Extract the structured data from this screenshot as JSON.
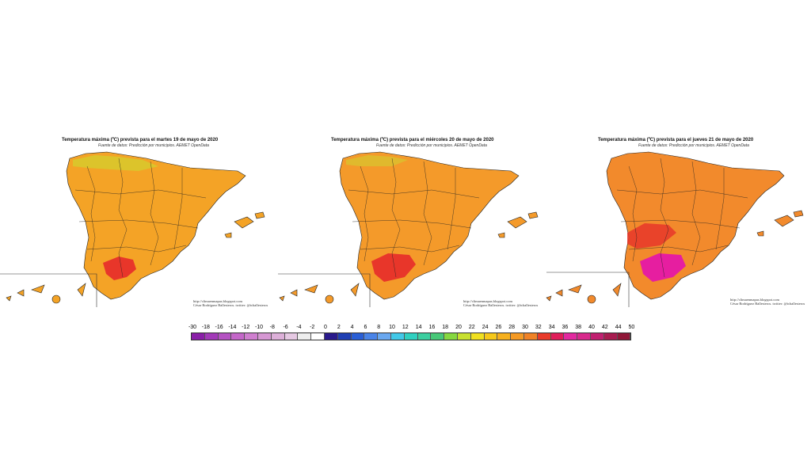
{
  "maps": [
    {
      "title": "Temperatura máxima (ºC) prevista para el martes 19 de mayo de 2020",
      "subtitle": "Fuente de datos: Predicción por municipios. AEMET OpenData",
      "credit_line1": "http://climaenmapas.blogspot.com",
      "credit_line2": "César Rodríguez Ballesteros. twitter: @tchallesteros",
      "dominant_color": "#f4a326",
      "hot_color": "#e8262f"
    },
    {
      "title": "Temperatura máxima (ºC) prevista para el miércoles 20 de mayo de 2020",
      "subtitle": "Fuente de datos: Predicción por municipios. AEMET OpenData",
      "credit_line1": "http://climaenmapas.blogspot.com",
      "credit_line2": "César Rodríguez Ballesteros. twitter: @tchallesteros",
      "dominant_color": "#f49a2a",
      "hot_color": "#e81f4a"
    },
    {
      "title": "Temperatura máxima (ºC) prevista para el jueves 21 de mayo de 2020",
      "subtitle": "Fuente de datos: Predicción por municipios. AEMET OpenData",
      "credit_line1": "http://climaenmapas.blogspot.com",
      "credit_line2": "César Rodríguez Ballesteros. twitter: @tchallesteros",
      "dominant_color": "#f28a2c",
      "hot_color": "#e61ea0"
    }
  ],
  "legend": {
    "labels": [
      "-30",
      "-18",
      "-16",
      "-14",
      "-12",
      "-10",
      "-8",
      "-6",
      "-4",
      "-2",
      "0",
      "2",
      "4",
      "6",
      "8",
      "10",
      "12",
      "14",
      "16",
      "18",
      "20",
      "22",
      "24",
      "26",
      "28",
      "30",
      "32",
      "34",
      "36",
      "38",
      "40",
      "42",
      "44",
      "50"
    ],
    "colors": [
      "#8a1fa8",
      "#a23ab8",
      "#b452c2",
      "#c467c9",
      "#cf7fcf",
      "#d698d3",
      "#ddb0d9",
      "#e6c9e3",
      "#eeeeee",
      "#ffffff",
      "#2a1a8c",
      "#1f3fb3",
      "#2a5fd6",
      "#4a84e8",
      "#6aa8f0",
      "#42c8e8",
      "#2fd0c0",
      "#3ccfa0",
      "#48c878",
      "#86d840",
      "#c8e030",
      "#f0e020",
      "#f6c81a",
      "#f6b01e",
      "#f49a24",
      "#f08226",
      "#e83a2a",
      "#e01e5a",
      "#e22aa0",
      "#d82a8c",
      "#c02070",
      "#a81c50",
      "#901838"
    ]
  }
}
